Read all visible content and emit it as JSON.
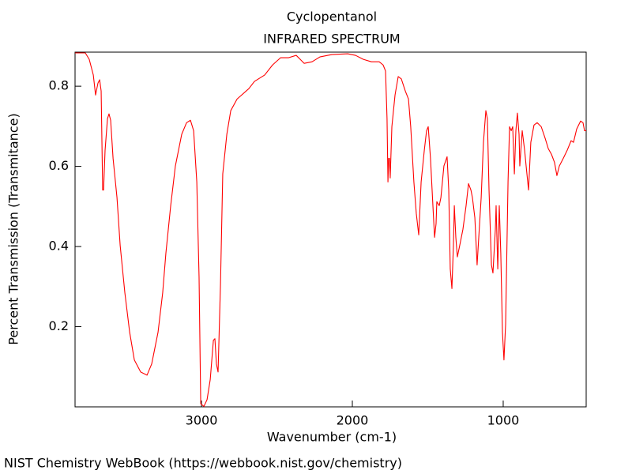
{
  "chart_data": {
    "type": "line",
    "title": "Cyclopentanol",
    "subtitle": "INFRARED SPECTRUM",
    "x_label": "Wavenumber (cm-1)",
    "y_label": "Percent Transmission (Transmitance)",
    "source": "NIST Chemistry WebBook (https://webbook.nist.gov/chemistry)",
    "color": "#ff0000",
    "xlim": [
      3838,
      450
    ],
    "ylim": [
      0,
      0.885
    ],
    "xticks": [
      3000,
      2000,
      1000
    ],
    "yticks": [
      0.2,
      0.4,
      0.6,
      0.8
    ],
    "x": [
      3838,
      3770,
      3744,
      3717,
      3702,
      3686,
      3675,
      3665,
      3655,
      3649,
      3639,
      3623,
      3613,
      3602,
      3586,
      3560,
      3539,
      3508,
      3476,
      3445,
      3403,
      3361,
      3330,
      3288,
      3257,
      3236,
      3204,
      3173,
      3131,
      3099,
      3073,
      3052,
      3031,
      3016,
      3005,
      2984,
      2963,
      2942,
      2921,
      2911,
      2901,
      2890,
      2874,
      2859,
      2832,
      2806,
      2764,
      2686,
      2649,
      2581,
      2529,
      2476,
      2424,
      2372,
      2319,
      2267,
      2215,
      2136,
      2031,
      1979,
      1927,
      1874,
      1822,
      1796,
      1780,
      1770,
      1764,
      1759,
      1754,
      1749,
      1738,
      1717,
      1696,
      1675,
      1649,
      1628,
      1613,
      1592,
      1576,
      1560,
      1544,
      1523,
      1508,
      1497,
      1482,
      1466,
      1455,
      1445,
      1440,
      1424,
      1413,
      1393,
      1372,
      1361,
      1351,
      1340,
      1330,
      1324,
      1314,
      1304,
      1288,
      1267,
      1246,
      1230,
      1214,
      1204,
      1188,
      1173,
      1162,
      1146,
      1131,
      1115,
      1105,
      1094,
      1078,
      1068,
      1052,
      1047,
      1036,
      1026,
      1016,
      1005,
      995,
      984,
      968,
      958,
      947,
      937,
      926,
      916,
      906,
      895,
      890,
      874,
      858,
      848,
      832,
      817,
      796,
      775,
      748,
      722,
      701,
      680,
      660,
      644,
      628,
      602,
      576,
      550,
      534,
      513,
      487,
      471,
      461,
      450
    ],
    "values": [
      0.883,
      0.883,
      0.867,
      0.828,
      0.778,
      0.808,
      0.816,
      0.788,
      0.541,
      0.541,
      0.64,
      0.719,
      0.731,
      0.715,
      0.62,
      0.522,
      0.403,
      0.285,
      0.186,
      0.117,
      0.087,
      0.079,
      0.107,
      0.186,
      0.285,
      0.383,
      0.502,
      0.601,
      0.68,
      0.709,
      0.715,
      0.689,
      0.561,
      0.324,
      0.008,
      0.001,
      0.018,
      0.068,
      0.166,
      0.17,
      0.107,
      0.087,
      0.305,
      0.581,
      0.68,
      0.739,
      0.768,
      0.794,
      0.812,
      0.828,
      0.853,
      0.871,
      0.871,
      0.877,
      0.857,
      0.861,
      0.873,
      0.879,
      0.881,
      0.877,
      0.867,
      0.861,
      0.861,
      0.853,
      0.838,
      0.719,
      0.561,
      0.62,
      0.62,
      0.571,
      0.699,
      0.778,
      0.824,
      0.818,
      0.788,
      0.768,
      0.699,
      0.561,
      0.482,
      0.429,
      0.561,
      0.64,
      0.689,
      0.699,
      0.62,
      0.502,
      0.423,
      0.457,
      0.512,
      0.502,
      0.522,
      0.601,
      0.624,
      0.541,
      0.344,
      0.295,
      0.403,
      0.502,
      0.423,
      0.374,
      0.403,
      0.443,
      0.502,
      0.557,
      0.541,
      0.522,
      0.472,
      0.354,
      0.423,
      0.522,
      0.66,
      0.739,
      0.719,
      0.541,
      0.354,
      0.334,
      0.443,
      0.502,
      0.344,
      0.502,
      0.383,
      0.186,
      0.117,
      0.206,
      0.561,
      0.699,
      0.689,
      0.699,
      0.581,
      0.689,
      0.733,
      0.68,
      0.601,
      0.689,
      0.64,
      0.601,
      0.541,
      0.66,
      0.703,
      0.709,
      0.699,
      0.67,
      0.644,
      0.63,
      0.61,
      0.577,
      0.601,
      0.62,
      0.64,
      0.664,
      0.66,
      0.693,
      0.713,
      0.709,
      0.689,
      0.689
    ]
  }
}
